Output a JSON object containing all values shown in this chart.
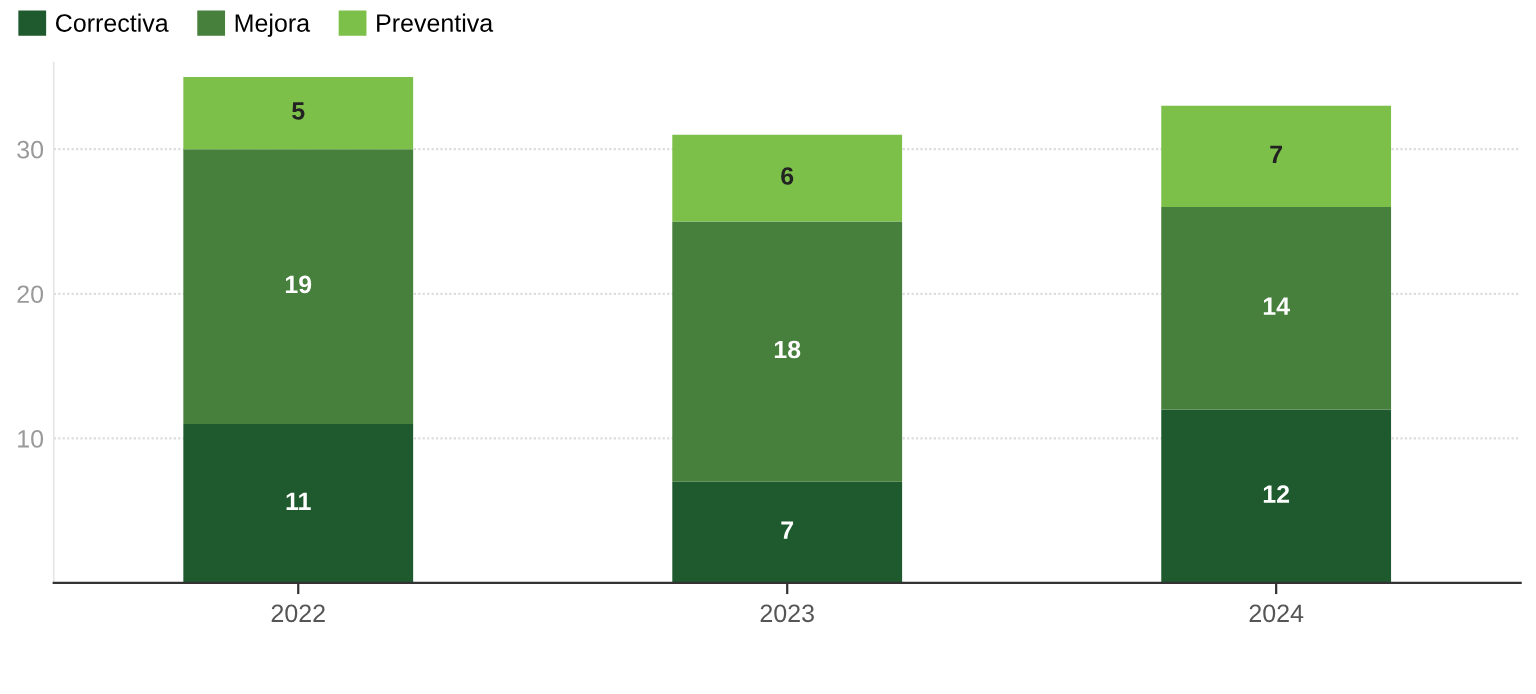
{
  "chart_data": {
    "type": "bar",
    "stacked": true,
    "categories": [
      "2022",
      "2023",
      "2024"
    ],
    "series": [
      {
        "name": "Correctiva",
        "color": "#1f5a2e",
        "values": [
          11,
          7,
          12
        ]
      },
      {
        "name": "Mejora",
        "color": "#477f3c",
        "values": [
          19,
          18,
          14
        ]
      },
      {
        "name": "Preventiva",
        "color": "#7cc04a",
        "values": [
          5,
          6,
          7
        ]
      }
    ],
    "ylim": [
      0,
      36
    ],
    "yticks": [
      10,
      20,
      30
    ],
    "grid": "y",
    "legend": "top left",
    "data_labels": true
  }
}
